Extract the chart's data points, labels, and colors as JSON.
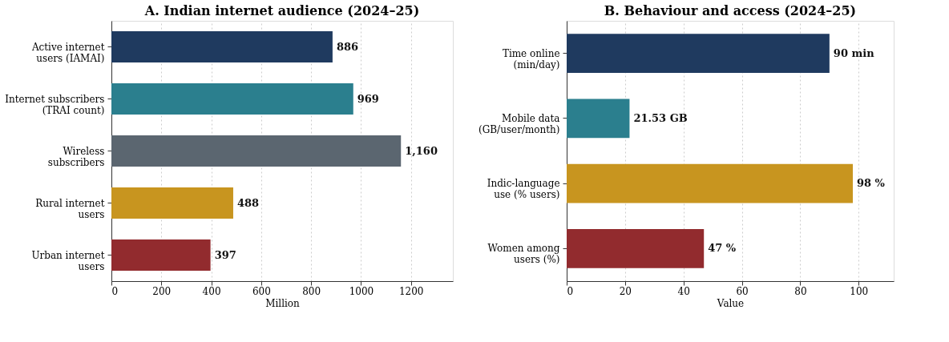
{
  "chart_data": [
    {
      "type": "bar",
      "orientation": "horizontal",
      "title": "A. Indian internet audience (2024–25)",
      "xlabel": "Million",
      "categories": [
        "Active internet\nusers (IAMAI)",
        "Internet subscribers\n(TRAI count)",
        "Wireless\nsubscribers",
        "Rural internet\nusers",
        "Urban internet\nusers"
      ],
      "values": [
        886,
        969,
        1160,
        488,
        397
      ],
      "colors": [
        "#1f3a5f",
        "#2b7f8e",
        "#5b6670",
        "#c8951f",
        "#922b2e"
      ],
      "value_labels": [
        "886",
        "969",
        "1,160",
        "488",
        "397"
      ],
      "xlim": [
        0,
        1368
      ],
      "xticks": [
        0,
        200,
        400,
        600,
        800,
        1000,
        1200
      ],
      "grid": "x",
      "legend": false
    },
    {
      "type": "bar",
      "orientation": "horizontal",
      "title": "B. Behaviour and access (2024–25)",
      "xlabel": "Value",
      "categories": [
        "Time online\n(min/day)",
        "Mobile data\n(GB/user/month)",
        "Indic-language\nuse (% users)",
        "Women among\nusers (%)"
      ],
      "values": [
        90,
        21.53,
        98,
        47
      ],
      "colors": [
        "#1f3a5f",
        "#2b7f8e",
        "#c8951f",
        "#922b2e"
      ],
      "value_labels": [
        "90 min",
        "21.53 GB",
        "98 %",
        "47 %"
      ],
      "xlim": [
        0,
        112
      ],
      "xticks": [
        0,
        20,
        40,
        60,
        80,
        100
      ],
      "grid": "x",
      "legend": false
    }
  ]
}
